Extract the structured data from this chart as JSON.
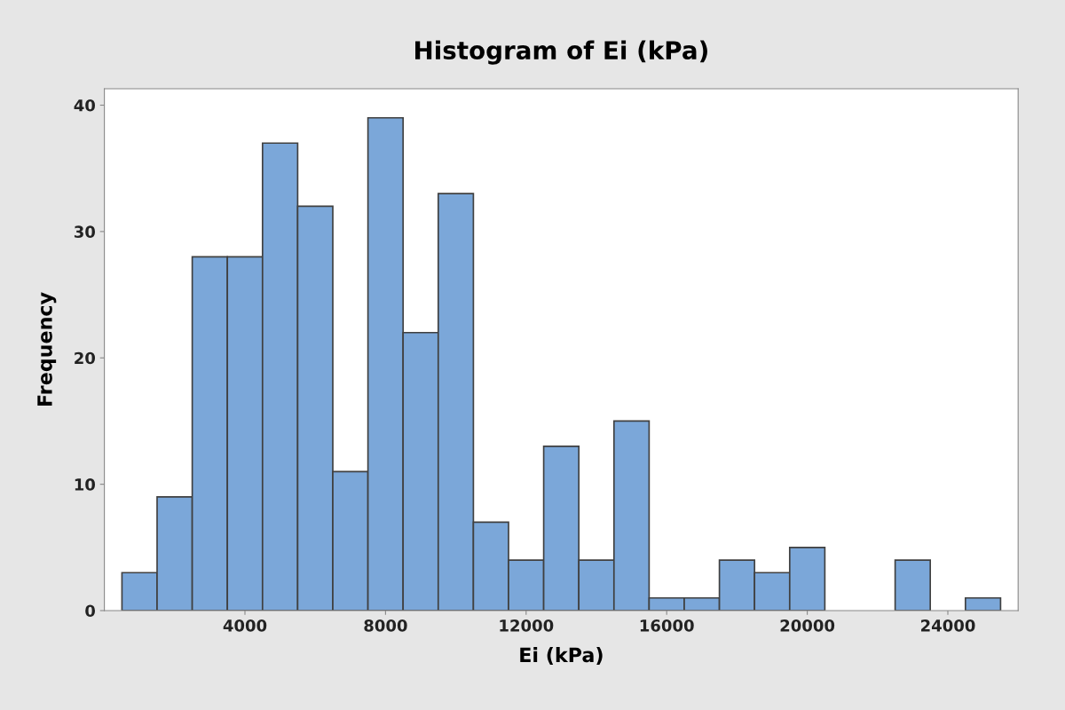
{
  "chart_data": {
    "type": "histogram",
    "title": "Histogram of Ei (kPa)",
    "xlabel": "Ei (kPa)",
    "ylabel": "Frequency",
    "bins": [
      500,
      1500,
      2500,
      3500,
      4500,
      5500,
      6500,
      7500,
      8500,
      9500,
      10500,
      11500,
      12500,
      13500,
      14500,
      15500,
      16500,
      17500,
      18500,
      19500,
      20500,
      21500,
      22500,
      23500,
      24500,
      25500
    ],
    "values": [
      3,
      9,
      28,
      28,
      37,
      32,
      11,
      39,
      22,
      33,
      7,
      4,
      13,
      4,
      15,
      1,
      1,
      4,
      3,
      5,
      0,
      0,
      4,
      0,
      1
    ],
    "color": "#7ba7d9",
    "xlim": [
      0,
      26000
    ],
    "xticks": [
      4000,
      8000,
      12000,
      16000,
      20000,
      24000
    ],
    "ylim": [
      0,
      41.3
    ],
    "yticks": [
      0,
      10,
      20,
      30,
      40
    ],
    "grid": false,
    "legend": false
  }
}
